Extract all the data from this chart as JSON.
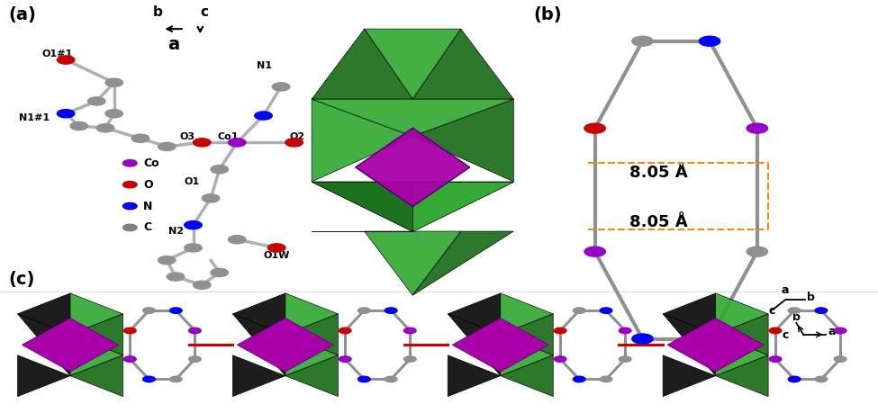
{
  "panel_a_label": "(a)",
  "panel_b_label": "(b)",
  "panel_c_label": "(c)",
  "bg_color": "#ffffff",
  "legend_items": [
    {
      "label": "Co",
      "color": "#9900cc"
    },
    {
      "label": "O",
      "color": "#cc0000"
    },
    {
      "label": "N",
      "color": "#0000ff"
    },
    {
      "label": "C",
      "color": "#808080"
    }
  ],
  "figsize": [
    9.75,
    4.59
  ],
  "dpi": 100
}
